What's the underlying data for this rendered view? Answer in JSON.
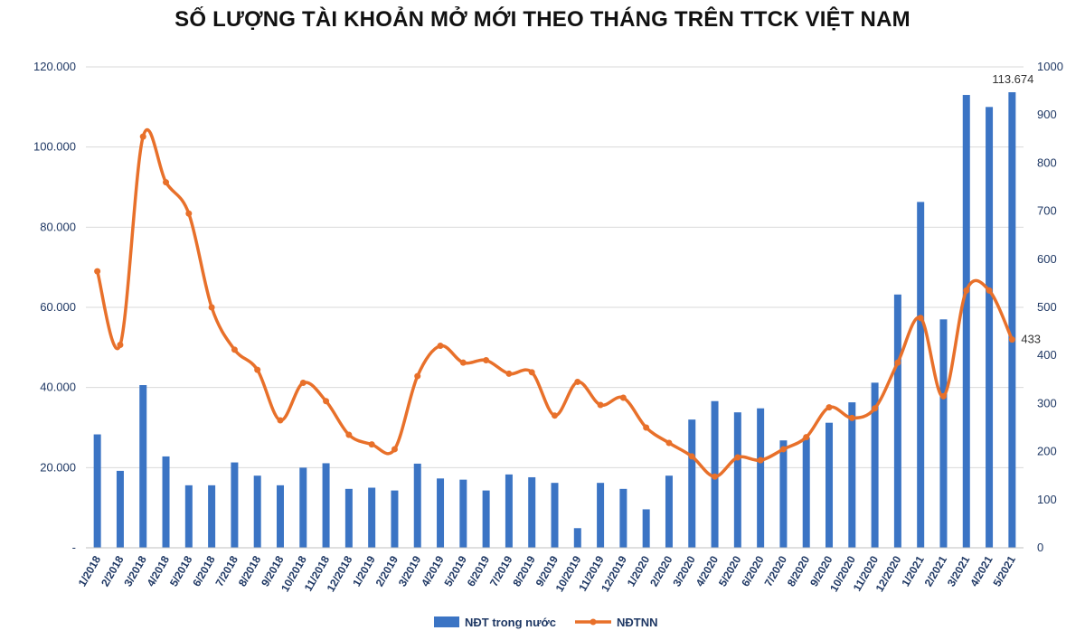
{
  "chart_data": {
    "type": "bar",
    "title": "SỐ LƯỢNG TÀI KHOẢN MỞ MỚI THEO THÁNG TRÊN TTCK VIỆT NAM",
    "categories": [
      "1/2018",
      "2/2018",
      "3/2018",
      "4/2018",
      "5/2018",
      "6/2018",
      "7/2018",
      "8/2018",
      "9/2018",
      "10/2018",
      "11/2018",
      "12/2018",
      "1/2019",
      "2/2019",
      "3/2019",
      "4/2019",
      "5/2019",
      "6/2019",
      "7/2019",
      "8/2019",
      "9/2019",
      "10/2019",
      "11/2019",
      "12/2019",
      "1/2020",
      "2/2020",
      "3/2020",
      "4/2020",
      "5/2020",
      "6/2020",
      "7/2020",
      "8/2020",
      "9/2020",
      "10/2020",
      "11/2020",
      "12/2020",
      "1/2021",
      "2/2021",
      "3/2021",
      "4/2021",
      "5/2021"
    ],
    "series": [
      {
        "name": "NĐT trong nước",
        "type": "bar",
        "axis": "left",
        "color": "#3b74c4",
        "values": [
          28300,
          19200,
          40600,
          22800,
          15600,
          15600,
          21300,
          18000,
          15600,
          20000,
          21100,
          14700,
          15000,
          14300,
          21000,
          17300,
          17000,
          14300,
          18300,
          17600,
          16200,
          4900,
          16200,
          14700,
          9600,
          18000,
          32000,
          36600,
          33800,
          34800,
          26800,
          27500,
          31200,
          36300,
          41200,
          63200,
          86300,
          57000,
          113000,
          110000,
          113674
        ]
      },
      {
        "name": "NĐTNN",
        "type": "line",
        "axis": "right",
        "color": "#e8702a",
        "values": [
          575,
          422,
          855,
          760,
          695,
          500,
          412,
          370,
          265,
          343,
          305,
          235,
          215,
          205,
          357,
          420,
          385,
          390,
          362,
          365,
          275,
          345,
          297,
          312,
          250,
          218,
          190,
          148,
          188,
          182,
          205,
          230,
          292,
          270,
          290,
          385,
          478,
          315,
          535,
          535,
          433
        ]
      }
    ],
    "ylim_left": [
      0,
      120000
    ],
    "yticks_left": [
      "-",
      "20.000",
      "40.000",
      "60.000",
      "80.000",
      "100.000",
      "120.000"
    ],
    "ylim_right": [
      0,
      1000
    ],
    "yticks_right": [
      "0",
      "100",
      "200",
      "300",
      "400",
      "500",
      "600",
      "700",
      "800",
      "900",
      "1000"
    ],
    "annotations": {
      "last_bar": "113.674",
      "last_point": "433"
    },
    "legend_position": "bottom",
    "grid": true
  }
}
